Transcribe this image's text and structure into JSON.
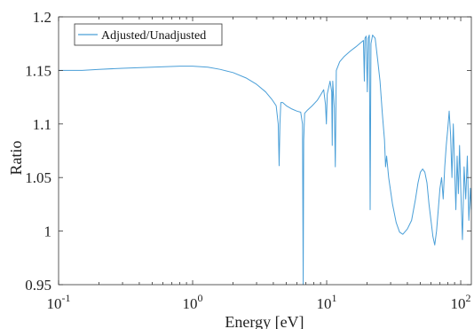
{
  "chart_data": {
    "type": "line",
    "title": "",
    "xlabel": "Energy [eV]",
    "ylabel": "Ratio",
    "xscale": "log",
    "xlim": [
      0.1,
      120
    ],
    "ylim": [
      0.95,
      1.2
    ],
    "grid": false,
    "legend_position": "top-left",
    "x_tick_labels": [
      {
        "value": 0.1,
        "base": "10",
        "exp": "-1"
      },
      {
        "value": 1,
        "base": "10",
        "exp": "0"
      },
      {
        "value": 10,
        "base": "10",
        "exp": "1"
      },
      {
        "value": 100,
        "base": "10",
        "exp": "2"
      }
    ],
    "y_ticks": [
      0.95,
      1,
      1.05,
      1.1,
      1.15,
      1.2
    ],
    "y_tick_labels": [
      "0.95",
      "1",
      "1.05",
      "1.1",
      "1.15",
      "1.2"
    ],
    "series": [
      {
        "name": "Adjusted/Unadjusted",
        "color": "#4a9fd8",
        "points": [
          [
            0.1,
            1.15
          ],
          [
            0.15,
            1.15
          ],
          [
            0.2,
            1.151
          ],
          [
            0.3,
            1.152
          ],
          [
            0.5,
            1.153
          ],
          [
            0.8,
            1.154
          ],
          [
            1.0,
            1.154
          ],
          [
            1.3,
            1.153
          ],
          [
            1.6,
            1.151
          ],
          [
            2.0,
            1.148
          ],
          [
            2.5,
            1.143
          ],
          [
            3.0,
            1.137
          ],
          [
            3.5,
            1.13
          ],
          [
            3.9,
            1.123
          ],
          [
            4.2,
            1.117
          ],
          [
            4.35,
            1.1
          ],
          [
            4.42,
            1.061
          ],
          [
            4.48,
            1.1
          ],
          [
            4.55,
            1.12
          ],
          [
            4.7,
            1.12
          ],
          [
            5.0,
            1.117
          ],
          [
            5.5,
            1.114
          ],
          [
            6.0,
            1.112
          ],
          [
            6.4,
            1.111
          ],
          [
            6.6,
            1.1
          ],
          [
            6.68,
            0.95
          ],
          [
            6.74,
            1.085
          ],
          [
            6.85,
            1.11
          ],
          [
            7.2,
            1.113
          ],
          [
            7.8,
            1.117
          ],
          [
            8.5,
            1.122
          ],
          [
            9.1,
            1.128
          ],
          [
            9.5,
            1.132
          ],
          [
            9.8,
            1.118
          ],
          [
            9.95,
            1.1
          ],
          [
            10.1,
            1.128
          ],
          [
            10.6,
            1.14
          ],
          [
            10.9,
            1.13
          ],
          [
            11.0,
            1.08
          ],
          [
            11.1,
            1.14
          ],
          [
            11.4,
            1.115
          ],
          [
            11.6,
            1.06
          ],
          [
            11.8,
            1.15
          ],
          [
            12.5,
            1.158
          ],
          [
            13.5,
            1.163
          ],
          [
            15.0,
            1.168
          ],
          [
            16.5,
            1.172
          ],
          [
            18.0,
            1.176
          ],
          [
            18.8,
            1.178
          ],
          [
            19.1,
            1.14
          ],
          [
            19.3,
            1.18
          ],
          [
            19.7,
            1.182
          ],
          [
            20.1,
            1.13
          ],
          [
            20.4,
            1.18
          ],
          [
            20.8,
            1.183
          ],
          [
            21.1,
            1.02
          ],
          [
            21.4,
            1.175
          ],
          [
            22.0,
            1.183
          ],
          [
            23.0,
            1.18
          ],
          [
            24.0,
            1.16
          ],
          [
            25.0,
            1.14
          ],
          [
            26.0,
            1.11
          ],
          [
            27.0,
            1.085
          ],
          [
            27.5,
            1.06
          ],
          [
            28.0,
            1.07
          ],
          [
            29.0,
            1.05
          ],
          [
            31.0,
            1.025
          ],
          [
            33.0,
            1.008
          ],
          [
            35.0,
            0.999
          ],
          [
            37.0,
            0.997
          ],
          [
            40.0,
            1.002
          ],
          [
            43.0,
            1.01
          ],
          [
            46.0,
            1.03
          ],
          [
            48.0,
            1.045
          ],
          [
            50.0,
            1.055
          ],
          [
            52.0,
            1.058
          ],
          [
            54.0,
            1.055
          ],
          [
            56.0,
            1.045
          ],
          [
            58.0,
            1.025
          ],
          [
            60.0,
            1.01
          ],
          [
            62.0,
            0.995
          ],
          [
            64.0,
            0.987
          ],
          [
            66.0,
            1.0
          ],
          [
            68.0,
            1.02
          ],
          [
            70.0,
            1.04
          ],
          [
            72.0,
            1.05
          ],
          [
            74.0,
            1.03
          ],
          [
            76.0,
            1.06
          ],
          [
            78.0,
            1.08
          ],
          [
            80.0,
            1.095
          ],
          [
            82.0,
            1.112
          ],
          [
            84.0,
            1.09
          ],
          [
            86.0,
            1.05
          ],
          [
            88.0,
            1.1
          ],
          [
            90.0,
            1.06
          ],
          [
            92.0,
            1.02
          ],
          [
            94.0,
            1.07
          ],
          [
            96.0,
            1.035
          ],
          [
            98.0,
            1.08
          ],
          [
            100.0,
            1.04
          ],
          [
            103.0,
            0.992
          ],
          [
            106.0,
            1.06
          ],
          [
            109.0,
            1.03
          ],
          [
            112.0,
            1.07
          ],
          [
            115.0,
            1.01
          ],
          [
            118.0,
            1.04
          ],
          [
            120.0,
            1.02
          ]
        ]
      }
    ]
  }
}
